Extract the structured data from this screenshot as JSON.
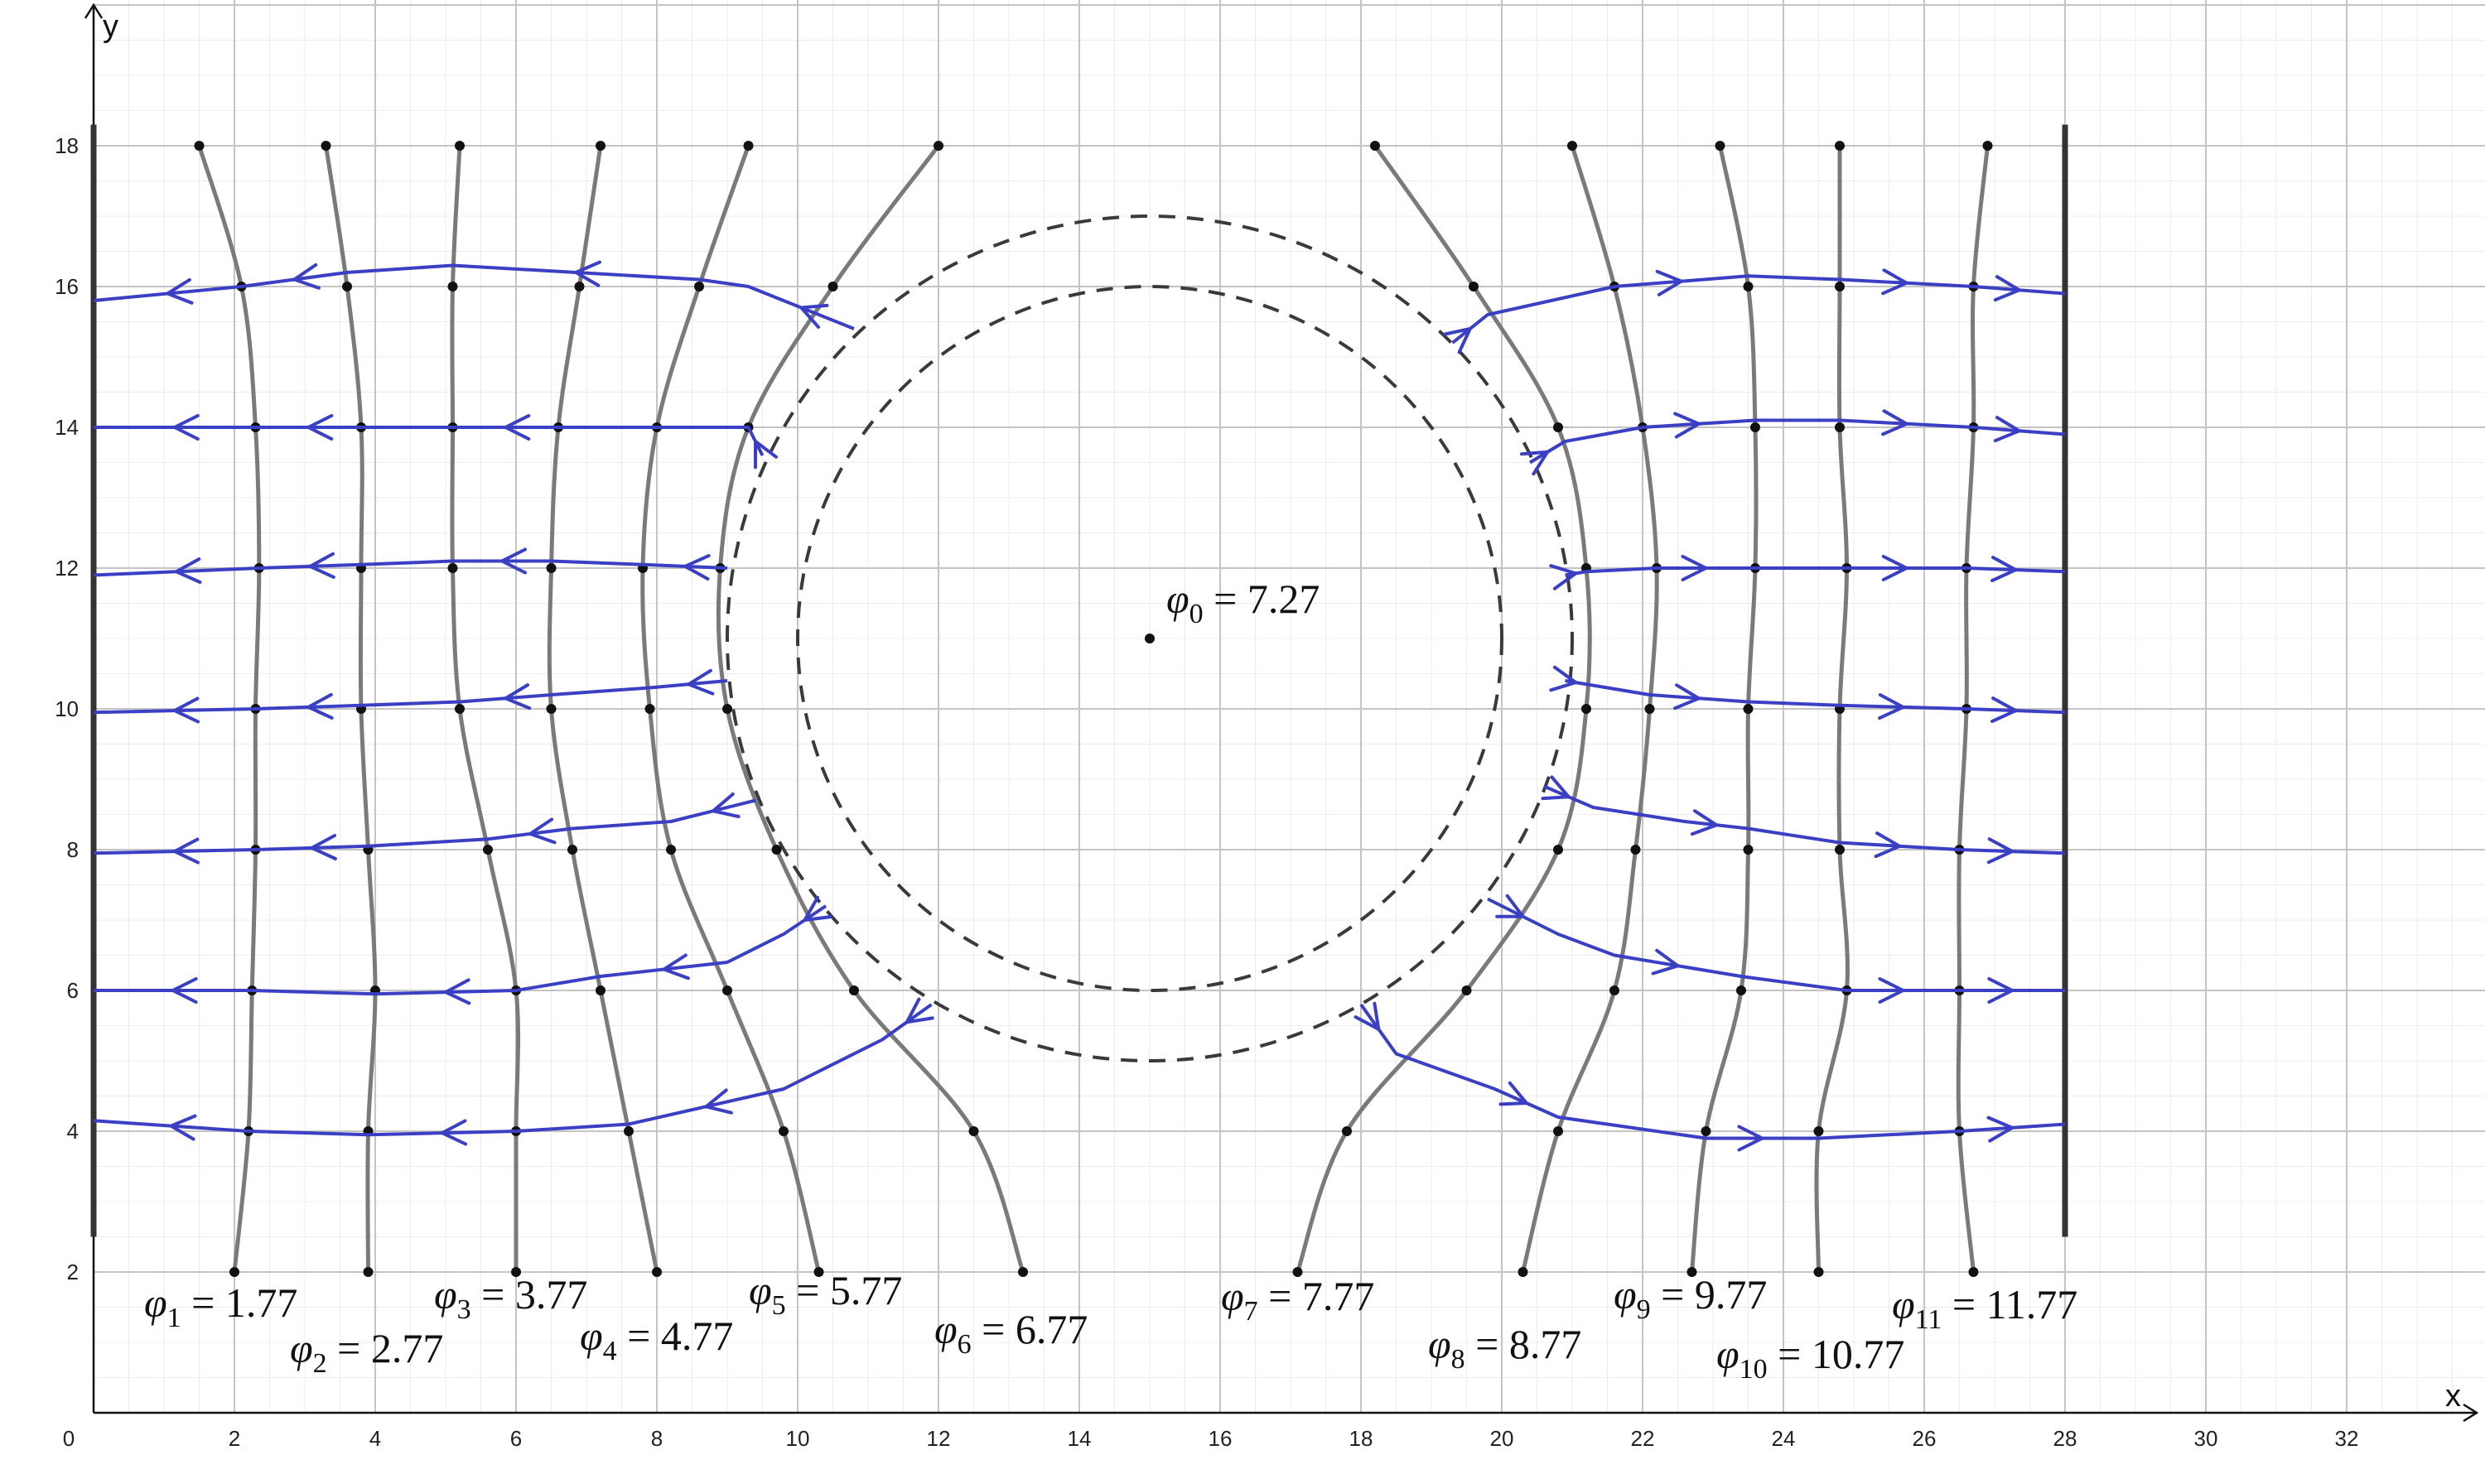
{
  "axes": {
    "x_name": "x",
    "y_name": "y",
    "x_ticks": [
      "0",
      "2",
      "4",
      "6",
      "8",
      "10",
      "12",
      "14",
      "16",
      "18",
      "20",
      "22",
      "24",
      "26",
      "28",
      "30",
      "32"
    ],
    "y_ticks": [
      "2",
      "4",
      "6",
      "8",
      "10",
      "12",
      "14",
      "16",
      "18"
    ]
  },
  "labels": {
    "phi0": {
      "sym": "φ",
      "sub": "0",
      "val": " = 7.27"
    },
    "phi1": {
      "sym": "φ",
      "sub": "1",
      "val": " = 1.77"
    },
    "phi2": {
      "sym": "φ",
      "sub": "2",
      "val": " = 2.77"
    },
    "phi3": {
      "sym": "φ",
      "sub": "3",
      "val": " = 3.77"
    },
    "phi4": {
      "sym": "φ",
      "sub": "4",
      "val": " = 4.77"
    },
    "phi5": {
      "sym": "φ",
      "sub": "5",
      "val": " = 5.77"
    },
    "phi6": {
      "sym": "φ",
      "sub": "6",
      "val": " = 6.77"
    },
    "phi7": {
      "sym": "φ",
      "sub": "7",
      "val": " = 7.77"
    },
    "phi8": {
      "sym": "φ",
      "sub": "8",
      "val": " = 8.77"
    },
    "phi9": {
      "sym": "φ",
      "sub": "9",
      "val": " = 9.77"
    },
    "phi10": {
      "sym": "φ",
      "sub": "10",
      "val": " = 10.77"
    },
    "phi11": {
      "sym": "φ",
      "sub": "11",
      "val": " = 11.77"
    }
  },
  "colors": {
    "equipotential": "#7a7a7a",
    "field_line": "#3a3fc4",
    "electrode": "#333333",
    "circle": "#3a3a3a",
    "grid_major": "#c4c4c4",
    "grid_minor": "#ececec"
  },
  "diagram": {
    "x_range": [
      0,
      34
    ],
    "y_range": [
      0,
      20
    ],
    "equipotentials": [
      [
        [
          1.5,
          18
        ],
        [
          2.1,
          16
        ],
        [
          2.3,
          14
        ],
        [
          2.35,
          12
        ],
        [
          2.3,
          10
        ],
        [
          2.3,
          8
        ],
        [
          2.25,
          6
        ],
        [
          2.2,
          4
        ],
        [
          2.0,
          2
        ]
      ],
      [
        [
          3.3,
          18
        ],
        [
          3.6,
          16
        ],
        [
          3.8,
          14
        ],
        [
          3.8,
          12
        ],
        [
          3.8,
          10
        ],
        [
          3.9,
          8
        ],
        [
          4.0,
          6
        ],
        [
          3.9,
          4
        ],
        [
          3.9,
          2
        ]
      ],
      [
        [
          5.2,
          18
        ],
        [
          5.1,
          16
        ],
        [
          5.1,
          14
        ],
        [
          5.1,
          12
        ],
        [
          5.2,
          10
        ],
        [
          5.6,
          8
        ],
        [
          6.0,
          6
        ],
        [
          6.0,
          4
        ],
        [
          6.0,
          2
        ]
      ],
      [
        [
          7.2,
          18
        ],
        [
          6.9,
          16
        ],
        [
          6.6,
          14
        ],
        [
          6.5,
          12
        ],
        [
          6.5,
          10
        ],
        [
          6.8,
          8
        ],
        [
          7.2,
          6
        ],
        [
          7.6,
          4
        ],
        [
          8.0,
          2
        ]
      ],
      [
        [
          9.3,
          18
        ],
        [
          8.6,
          16
        ],
        [
          8.0,
          14
        ],
        [
          7.8,
          12
        ],
        [
          7.9,
          10
        ],
        [
          8.2,
          8
        ],
        [
          9.0,
          6
        ],
        [
          9.8,
          4
        ],
        [
          10.3,
          2
        ]
      ],
      [
        [
          12.0,
          18
        ],
        [
          10.5,
          16
        ],
        [
          9.3,
          14
        ],
        [
          8.9,
          12
        ],
        [
          9.0,
          10
        ],
        [
          9.7,
          8
        ],
        [
          10.8,
          6
        ],
        [
          12.5,
          4
        ],
        [
          13.2,
          2
        ]
      ],
      [
        [
          18.2,
          18
        ],
        [
          19.6,
          16
        ],
        [
          20.8,
          14
        ],
        [
          21.2,
          12
        ],
        [
          21.2,
          10
        ],
        [
          20.8,
          8
        ],
        [
          19.5,
          6
        ],
        [
          17.8,
          4
        ],
        [
          17.1,
          2
        ]
      ],
      [
        [
          21.0,
          18
        ],
        [
          21.6,
          16
        ],
        [
          22.0,
          14
        ],
        [
          22.2,
          12
        ],
        [
          22.1,
          10
        ],
        [
          21.9,
          8
        ],
        [
          21.6,
          6
        ],
        [
          20.8,
          4
        ],
        [
          20.3,
          2
        ]
      ],
      [
        [
          23.1,
          18
        ],
        [
          23.5,
          16
        ],
        [
          23.6,
          14
        ],
        [
          23.6,
          12
        ],
        [
          23.5,
          10
        ],
        [
          23.5,
          8
        ],
        [
          23.4,
          6
        ],
        [
          22.9,
          4
        ],
        [
          22.7,
          2
        ]
      ],
      [
        [
          24.8,
          18
        ],
        [
          24.8,
          16
        ],
        [
          24.8,
          14
        ],
        [
          24.9,
          12
        ],
        [
          24.8,
          10
        ],
        [
          24.8,
          8
        ],
        [
          24.9,
          6
        ],
        [
          24.5,
          4
        ],
        [
          24.5,
          2
        ]
      ],
      [
        [
          26.9,
          18
        ],
        [
          26.7,
          16
        ],
        [
          26.7,
          14
        ],
        [
          26.6,
          12
        ],
        [
          26.6,
          10
        ],
        [
          26.5,
          8
        ],
        [
          26.5,
          6
        ],
        [
          26.5,
          4
        ],
        [
          26.7,
          2
        ]
      ]
    ],
    "field_lines": [
      [
        [
          10.8,
          15.4
        ],
        [
          9.3,
          16.0
        ],
        [
          8.6,
          16.1
        ],
        [
          5.1,
          16.3
        ],
        [
          3.6,
          16.2
        ],
        [
          2.1,
          16.0
        ],
        [
          0,
          15.8
        ]
      ],
      [
        [
          9.5,
          13.6
        ],
        [
          9.3,
          14.0
        ],
        [
          6.6,
          14.0
        ],
        [
          5.1,
          14.0
        ],
        [
          3.8,
          14.0
        ],
        [
          2.3,
          14.0
        ],
        [
          0,
          14.0
        ]
      ],
      [
        [
          9.0,
          12.0
        ],
        [
          7.8,
          12.05
        ],
        [
          6.5,
          12.1
        ],
        [
          5.1,
          12.1
        ],
        [
          3.8,
          12.05
        ],
        [
          2.35,
          12.0
        ],
        [
          0,
          11.9
        ]
      ],
      [
        [
          9.0,
          10.4
        ],
        [
          7.9,
          10.3
        ],
        [
          6.5,
          10.2
        ],
        [
          5.2,
          10.1
        ],
        [
          3.8,
          10.05
        ],
        [
          2.3,
          10.0
        ],
        [
          0,
          9.95
        ]
      ],
      [
        [
          9.4,
          8.7
        ],
        [
          8.2,
          8.4
        ],
        [
          6.8,
          8.3
        ],
        [
          5.6,
          8.15
        ],
        [
          3.9,
          8.05
        ],
        [
          2.3,
          8.0
        ],
        [
          0,
          7.95
        ]
      ],
      [
        [
          10.4,
          7.2
        ],
        [
          9.8,
          6.8
        ],
        [
          9.0,
          6.4
        ],
        [
          7.2,
          6.2
        ],
        [
          6.0,
          6.0
        ],
        [
          4.0,
          5.95
        ],
        [
          2.25,
          6.0
        ],
        [
          0,
          6.0
        ]
      ],
      [
        [
          11.9,
          5.8
        ],
        [
          11.2,
          5.3
        ],
        [
          9.8,
          4.6
        ],
        [
          7.6,
          4.1
        ],
        [
          6.0,
          4.0
        ],
        [
          3.9,
          3.95
        ],
        [
          2.2,
          4.0
        ],
        [
          0,
          4.15
        ]
      ],
      [
        [
          19.3,
          15.2
        ],
        [
          19.8,
          15.6
        ],
        [
          21.6,
          16.0
        ],
        [
          23.5,
          16.15
        ],
        [
          24.8,
          16.1
        ],
        [
          26.7,
          16.0
        ],
        [
          28,
          15.9
        ]
      ],
      [
        [
          20.4,
          13.5
        ],
        [
          20.9,
          13.8
        ],
        [
          22.0,
          14.0
        ],
        [
          23.6,
          14.1
        ],
        [
          24.8,
          14.1
        ],
        [
          26.7,
          14.0
        ],
        [
          28,
          13.9
        ]
      ],
      [
        [
          20.9,
          11.9
        ],
        [
          21.2,
          11.95
        ],
        [
          22.2,
          12.0
        ],
        [
          23.6,
          12.0
        ],
        [
          24.9,
          12.0
        ],
        [
          26.6,
          12.0
        ],
        [
          28,
          11.95
        ]
      ],
      [
        [
          20.9,
          10.4
        ],
        [
          21.2,
          10.35
        ],
        [
          22.1,
          10.2
        ],
        [
          23.5,
          10.1
        ],
        [
          24.8,
          10.05
        ],
        [
          26.6,
          10.0
        ],
        [
          28,
          9.95
        ]
      ],
      [
        [
          20.6,
          8.9
        ],
        [
          21.3,
          8.6
        ],
        [
          22.6,
          8.4
        ],
        [
          23.5,
          8.3
        ],
        [
          24.8,
          8.1
        ],
        [
          26.5,
          8.0
        ],
        [
          28,
          7.95
        ]
      ],
      [
        [
          19.8,
          7.3
        ],
        [
          20.8,
          6.8
        ],
        [
          21.6,
          6.5
        ],
        [
          23.4,
          6.2
        ],
        [
          24.9,
          6.0
        ],
        [
          26.5,
          6.0
        ],
        [
          28,
          6.0
        ]
      ],
      [
        [
          18.0,
          5.8
        ],
        [
          18.5,
          5.1
        ],
        [
          19.9,
          4.6
        ],
        [
          20.8,
          4.2
        ],
        [
          22.9,
          3.9
        ],
        [
          24.5,
          3.9
        ],
        [
          26.5,
          4.0
        ],
        [
          28,
          4.1
        ]
      ]
    ],
    "circle_center": [
      15,
      11
    ],
    "circle_radii": [
      5,
      6
    ],
    "electrode_x": [
      0,
      28
    ],
    "electrode_y_span": [
      2.5,
      18.3
    ],
    "center_point": [
      15,
      11
    ]
  }
}
